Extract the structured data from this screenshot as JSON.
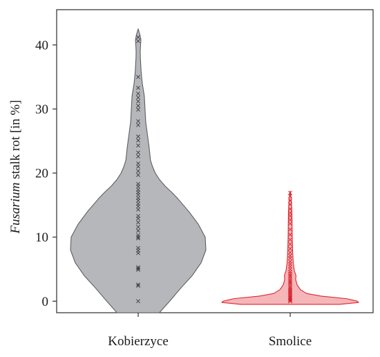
{
  "chart_data": {
    "type": "violin",
    "ylabel": {
      "italic": "Fusarium",
      "rest": " stalk rot [in %]"
    },
    "xlabel": "",
    "ylim": [
      -1.8,
      45.5
    ],
    "yticks": [
      0,
      10,
      20,
      30,
      40
    ],
    "grid": false,
    "series": [
      {
        "name": "Kobierzyce",
        "fill": "#b6b7bb",
        "stroke": "#5c5d61",
        "marker_color": "#3a3a3a",
        "points": [
          0,
          2.4,
          2.6,
          4.9,
          5.1,
          5.3,
          7.5,
          7.9,
          8.3,
          9.8,
          10.0,
          10.3,
          11.0,
          11.6,
          12.3,
          12.9,
          13.3,
          14.3,
          14.8,
          15.2,
          15.7,
          16.1,
          16.6,
          17.0,
          17.4,
          17.9,
          18.3,
          19.7,
          20.3,
          21.0,
          21.5,
          22.6,
          23.2,
          24.3,
          25.1,
          25.7,
          27.5,
          28.1,
          29.9,
          30.5,
          31.2,
          31.8,
          32.4,
          33.3,
          35.0,
          40.6,
          41.2
        ],
        "density": [
          [
            -1.8,
            0.31
          ],
          [
            0,
            0.46
          ],
          [
            2,
            0.62
          ],
          [
            4,
            0.79
          ],
          [
            6,
            0.92
          ],
          [
            8,
            0.99
          ],
          [
            10,
            0.98
          ],
          [
            12,
            0.88
          ],
          [
            14,
            0.74
          ],
          [
            16,
            0.58
          ],
          [
            17,
            0.49
          ],
          [
            18,
            0.39
          ],
          [
            19,
            0.31
          ],
          [
            20,
            0.25
          ],
          [
            21,
            0.21
          ],
          [
            22,
            0.18
          ],
          [
            24,
            0.16
          ],
          [
            26,
            0.135
          ],
          [
            28,
            0.11
          ],
          [
            30,
            0.1
          ],
          [
            31,
            0.095
          ],
          [
            32,
            0.09
          ],
          [
            33,
            0.075
          ],
          [
            34,
            0.06
          ],
          [
            35,
            0.05
          ],
          [
            36,
            0.042
          ],
          [
            38,
            0.032
          ],
          [
            39,
            0.03
          ],
          [
            40,
            0.035
          ],
          [
            40.8,
            0.04
          ],
          [
            41.6,
            0.025
          ],
          [
            42.5,
            0
          ]
        ]
      },
      {
        "name": "Smolice",
        "fill": "#f4b6b9",
        "stroke": "#e0242b",
        "marker_color": "#d8202a",
        "points": [
          0,
          0,
          0,
          0,
          0.2,
          0.3,
          0.5,
          0.6,
          0.8,
          1.0,
          1.2,
          1.4,
          1.6,
          1.8,
          2.0,
          2.2,
          2.5,
          2.8,
          3.0,
          3.2,
          3.5,
          3.8,
          4.0,
          4.3,
          4.6,
          5.0,
          5.4,
          5.8,
          6.2,
          6.7,
          7.1,
          7.6,
          8.2,
          8.9,
          9.6,
          10.4,
          11.2,
          12.1,
          12.7,
          13.3,
          13.8,
          14.4,
          15.1,
          15.7,
          16.4,
          16.9
        ],
        "density": [
          [
            -0.5,
            0.72
          ],
          [
            -0.2,
            1.0
          ],
          [
            0,
            0.98
          ],
          [
            0.4,
            0.82
          ],
          [
            0.8,
            0.45
          ],
          [
            1.2,
            0.24
          ],
          [
            1.8,
            0.15
          ],
          [
            2.6,
            0.1
          ],
          [
            3.4,
            0.08
          ],
          [
            4.0,
            0.085
          ],
          [
            4.8,
            0.06
          ],
          [
            6,
            0.045
          ],
          [
            7,
            0.04
          ],
          [
            8,
            0.035
          ],
          [
            10,
            0.03
          ],
          [
            12,
            0.028
          ],
          [
            14,
            0.025
          ],
          [
            15,
            0.02
          ],
          [
            16,
            0.015
          ],
          [
            17.2,
            0
          ]
        ]
      }
    ]
  }
}
